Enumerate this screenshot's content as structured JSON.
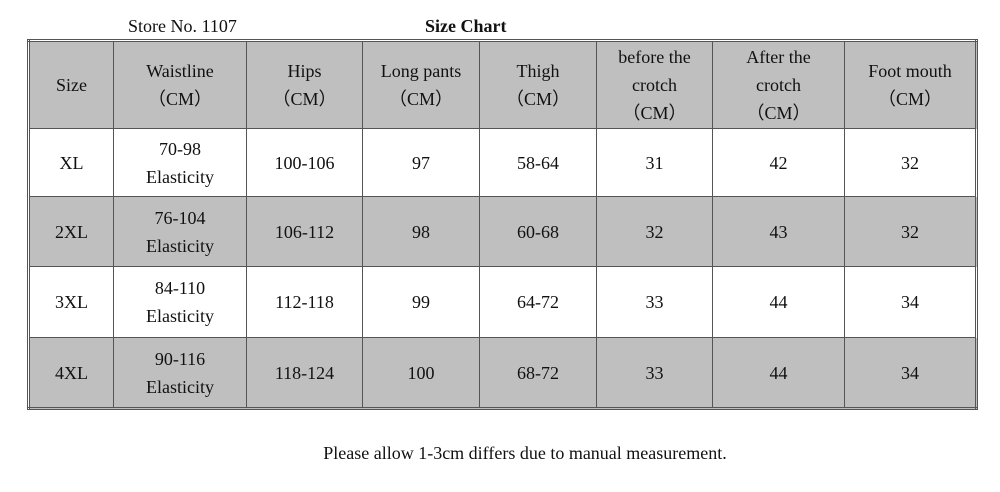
{
  "header": {
    "store": "Store No. 1107",
    "title": "Size Chart"
  },
  "table": {
    "columns": [
      [
        "Size"
      ],
      [
        "Waistline",
        "（CM）"
      ],
      [
        "Hips",
        "（CM）"
      ],
      [
        "Long pants",
        "（CM）"
      ],
      [
        "Thigh",
        "（CM）"
      ],
      [
        "before the",
        "crotch",
        "（CM）"
      ],
      [
        "After the",
        "crotch",
        "（CM）"
      ],
      [
        "Foot mouth",
        "（CM）"
      ]
    ],
    "rows": [
      [
        [
          "XL"
        ],
        [
          "70-98",
          "Elasticity"
        ],
        [
          "100-106"
        ],
        [
          "97"
        ],
        [
          "58-64"
        ],
        [
          "31"
        ],
        [
          "42"
        ],
        [
          "32"
        ]
      ],
      [
        [
          "2XL"
        ],
        [
          "76-104",
          "Elasticity"
        ],
        [
          "106-112"
        ],
        [
          "98"
        ],
        [
          "60-68"
        ],
        [
          "32"
        ],
        [
          "43"
        ],
        [
          "32"
        ]
      ],
      [
        [
          "3XL"
        ],
        [
          "84-110",
          "Elasticity"
        ],
        [
          "112-118"
        ],
        [
          "99"
        ],
        [
          "64-72"
        ],
        [
          "33"
        ],
        [
          "44"
        ],
        [
          "34"
        ]
      ],
      [
        [
          "4XL"
        ],
        [
          "90-116",
          "Elasticity"
        ],
        [
          "118-124"
        ],
        [
          "100"
        ],
        [
          "68-72"
        ],
        [
          "33"
        ],
        [
          "44"
        ],
        [
          "34"
        ]
      ]
    ]
  },
  "footer": {
    "note": "Please allow 1-3cm differs due to manual measurement."
  }
}
